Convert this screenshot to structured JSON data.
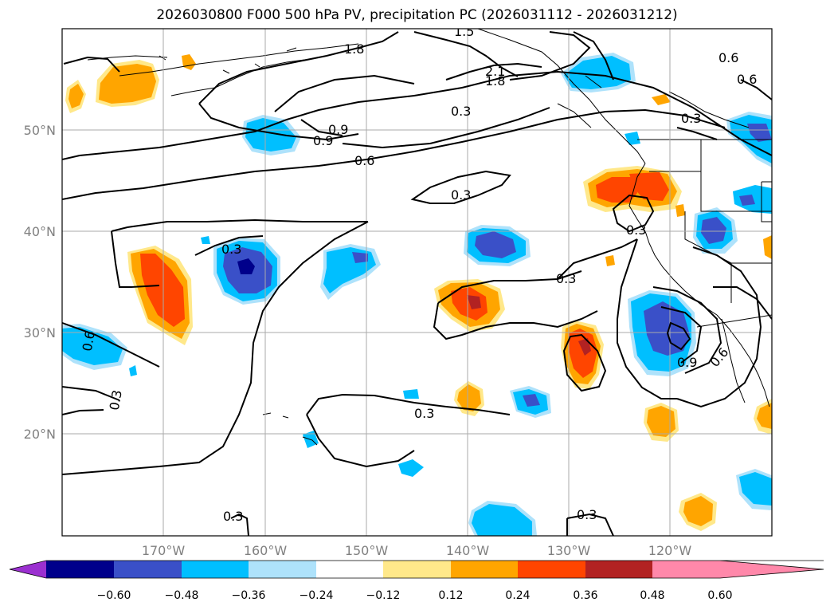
{
  "title": "2026030800 F000 500 hPa PV, precipitation PC (2026031112 - 2026031212)",
  "map": {
    "lat_labels": [
      "50°N",
      "40°N",
      "30°N",
      "20°N"
    ],
    "lon_labels": [
      "170°W",
      "160°W",
      "150°W",
      "140°W",
      "130°W",
      "120°W"
    ],
    "contour_labels": [
      "1.8",
      "1.8",
      "2.1",
      "1.5",
      "0.9",
      "0.6",
      "0.9",
      "0.6",
      "0.3",
      "0.3",
      "0.3",
      "0.3",
      "0.3",
      "0.3",
      "0.3",
      "0.3",
      "0.6",
      "0.3",
      "0.6",
      "0.9",
      "0.6",
      "0.3"
    ]
  },
  "colorbar": {
    "ticks": [
      "−0.60",
      "−0.48",
      "−0.36",
      "−0.24",
      "−0.12",
      "0.12",
      "0.24",
      "0.36",
      "0.48",
      "0.60"
    ],
    "colors": [
      "#9b30d0",
      "#00008b",
      "#3a50c8",
      "#00bfff",
      "#aee2fb",
      "#ffffff",
      "#ffe88a",
      "#ffa500",
      "#ff4500",
      "#b22222",
      "#ff88aa"
    ]
  }
}
